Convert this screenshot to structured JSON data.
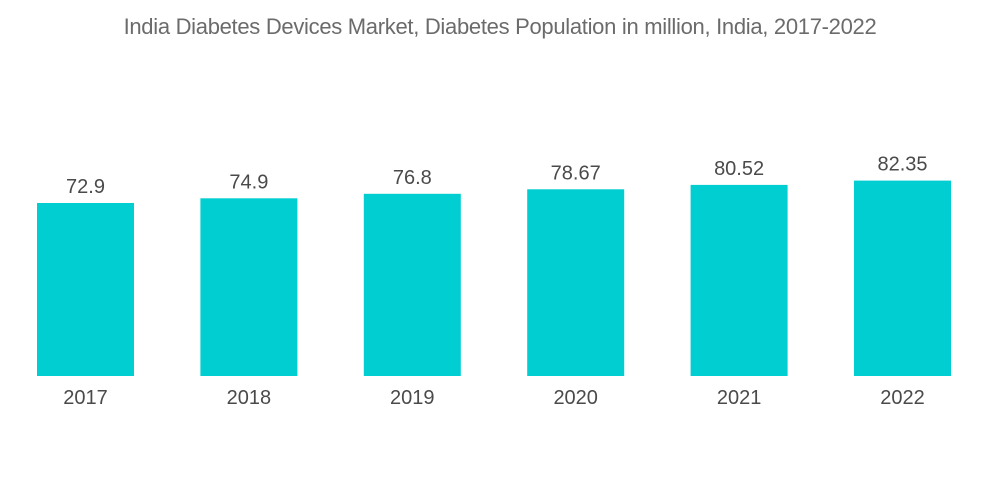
{
  "chart_data": {
    "type": "bar",
    "title": "India Diabetes Devices Market, Diabetes Population in million, India, 2017-2022",
    "xlabel": "",
    "ylabel": "",
    "categories": [
      "2017",
      "2018",
      "2019",
      "2020",
      "2021",
      "2022"
    ],
    "values": [
      72.9,
      74.9,
      76.8,
      78.67,
      80.52,
      82.35
    ],
    "value_labels": [
      "72.9",
      "74.9",
      "76.8",
      "78.67",
      "80.52",
      "82.35"
    ],
    "ylim": [
      0,
      82.35
    ],
    "grid": false,
    "legend": "none",
    "bar_color": "#00CED1"
  }
}
